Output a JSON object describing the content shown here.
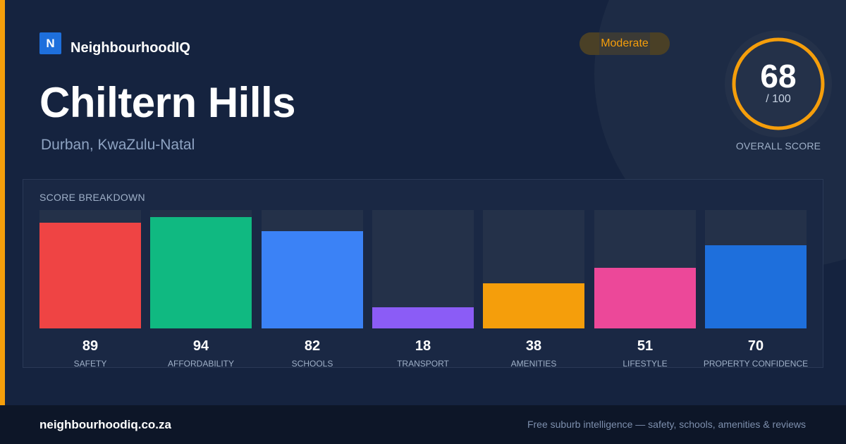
{
  "brand": {
    "logo_letter": "N",
    "name": "NeighbourhoodIQ"
  },
  "suburb": {
    "name": "Chiltern Hills",
    "location": "Durban, KwaZulu-Natal"
  },
  "badge": {
    "label": "Moderate",
    "color": "#f59e0b"
  },
  "overall": {
    "score": "68",
    "max_label": "/ 100",
    "score_fraction": 0.68,
    "label": "OVERALL SCORE",
    "ring_color": "#f59e0b"
  },
  "breakdown": {
    "title": "SCORE BREAKDOWN",
    "max": 100,
    "items": [
      {
        "label": "SAFETY",
        "value": 89,
        "color": "#ef4444"
      },
      {
        "label": "AFFORDABILITY",
        "value": 94,
        "color": "#10b981"
      },
      {
        "label": "SCHOOLS",
        "value": 82,
        "color": "#3b82f6"
      },
      {
        "label": "TRANSPORT",
        "value": 18,
        "color": "#8b5cf6"
      },
      {
        "label": "AMENITIES",
        "value": 38,
        "color": "#f59e0b"
      },
      {
        "label": "LIFESTYLE",
        "value": 51,
        "color": "#ec4899"
      },
      {
        "label": "PROPERTY CONFIDENCE",
        "value": 70,
        "color": "#1e6fdc"
      }
    ]
  },
  "footer": {
    "domain": "neighbourhoodiq.co.za",
    "tagline": "Free suburb intelligence — safety, schools, amenities & reviews"
  },
  "theme": {
    "accent": "#f59e0b",
    "background": "#15233f",
    "brand_blue": "#1e6fdc"
  }
}
